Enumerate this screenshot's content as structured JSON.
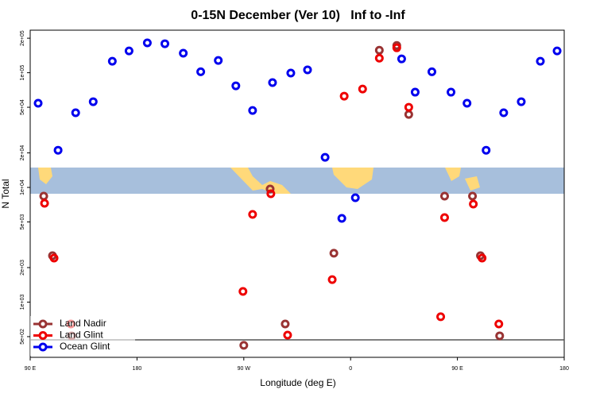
{
  "chart_data": {
    "type": "scatter",
    "title": "0-15N December (Ver 10)   Inf to -Inf",
    "x_label": "Longitude (deg E)",
    "y_label": "N Total",
    "log_y": true,
    "legend": "bottom-left",
    "xlim": [
      90,
      540
    ],
    "xticks": [
      {
        "value": 90,
        "label": "90 E"
      },
      {
        "value": 180,
        "label": "180"
      },
      {
        "value": 270,
        "label": "90 W"
      },
      {
        "value": 360,
        "label": "0"
      },
      {
        "value": 450,
        "label": "90 E"
      },
      {
        "value": 540,
        "label": "180"
      }
    ],
    "ylim": [
      330,
      235000
    ],
    "yticks": [
      {
        "value": 500,
        "label": "5e+02"
      },
      {
        "value": 1000,
        "label": "1e+03"
      },
      {
        "value": 2000,
        "label": "2e+03"
      },
      {
        "value": 5000,
        "label": "5e+03"
      },
      {
        "value": 10000,
        "label": "1e+04"
      },
      {
        "value": 20000,
        "label": "2e+04"
      },
      {
        "value": 50000,
        "label": "5e+04"
      },
      {
        "value": 100000,
        "label": "1e+05"
      },
      {
        "value": 200000,
        "label": "2e+05"
      }
    ],
    "series": [
      {
        "name": "Land Nadir",
        "color": "#993333",
        "x": [
          101.4,
          108.8,
          124.9,
          270.0,
          292.2,
          304.9,
          345.9,
          384.2,
          398.9,
          409.0,
          439.2,
          462.7,
          469.4,
          485.6
        ],
        "values": [
          8400,
          2540,
          508,
          420,
          9690,
          645,
          2670,
          157000,
          173000,
          43300,
          8400,
          8400,
          2540,
          508
        ]
      },
      {
        "name": "Land Glint",
        "color": "#ee0000",
        "x": [
          102.1,
          110.1,
          124.3,
          269.3,
          277.4,
          292.8,
          306.9,
          344.5,
          354.6,
          370.1,
          384.2,
          398.9,
          409.0,
          435.9,
          439.2,
          463.4,
          470.8,
          484.9
        ],
        "values": [
          7270,
          2420,
          645,
          1240,
          5820,
          8810,
          516,
          1570,
          62500,
          72100,
          134000,
          165000,
          50000,
          745,
          5460,
          7160,
          2420,
          645
        ]
      },
      {
        "name": "Ocean Glint",
        "color": "#0000ee",
        "x": [
          96.7,
          113.5,
          128.3,
          143.1,
          159.2,
          173.3,
          188.7,
          203.5,
          219.0,
          233.7,
          248.5,
          263.3,
          277.4,
          294.2,
          309.6,
          323.7,
          338.5,
          352.6,
          364.0,
          403.0,
          414.4,
          428.5,
          444.6,
          458.1,
          474.2,
          489.0,
          503.8,
          519.9,
          534.0
        ],
        "values": [
          54200,
          21100,
          44800,
          55900,
          126000,
          155000,
          182000,
          179000,
          148000,
          102000,
          128000,
          76900,
          46900,
          82000,
          99300,
          106000,
          18300,
          5370,
          8130,
          132000,
          67700,
          102000,
          67700,
          54200,
          21100,
          44800,
          55900,
          126000,
          155000
        ]
      }
    ]
  }
}
